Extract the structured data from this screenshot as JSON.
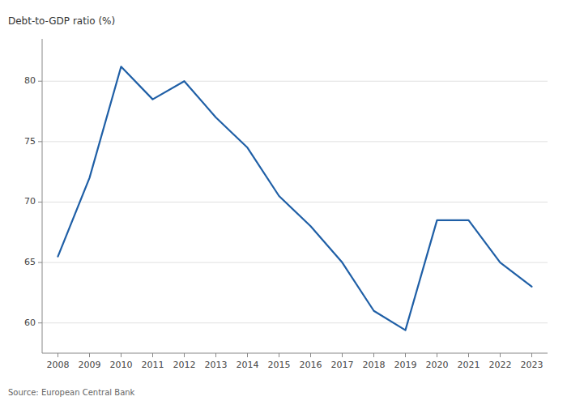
{
  "chart_data": {
    "type": "line",
    "x": [
      2008,
      2009,
      2010,
      2011,
      2012,
      2013,
      2014,
      2015,
      2016,
      2017,
      2018,
      2019,
      2020,
      2021,
      2022,
      2023
    ],
    "values": [
      65.5,
      72.0,
      81.2,
      78.5,
      80.0,
      77.0,
      74.5,
      70.5,
      68.0,
      65.0,
      61.0,
      59.4,
      68.5,
      68.5,
      65.0,
      63.0
    ],
    "color": "#1f5fa6",
    "ylabel": "Debt-to-GDP ratio (%)",
    "annotations": [
      "Source: European Central Bank"
    ],
    "ylim": [
      57.5,
      83.5
    ],
    "yticks": [
      60,
      65,
      70,
      75,
      80
    ],
    "xlim": [
      2007.5,
      2023.5
    ],
    "xticks": [
      2008,
      2009,
      2010,
      2011,
      2012,
      2013,
      2014,
      2015,
      2016,
      2017,
      2018,
      2019,
      2020,
      2021,
      2022,
      2023
    ],
    "grid": true
  }
}
